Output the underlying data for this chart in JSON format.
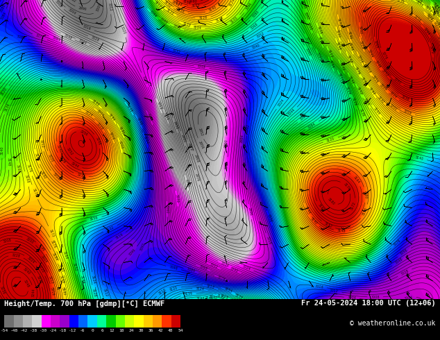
{
  "title_left": "Height/Temp. 700 hPa [gdmp][°C] ECMWF",
  "title_right": "Fr 24-05-2024 18:00 UTC (12+06)",
  "copyright": "© weatheronline.co.uk",
  "colorbar_colors": [
    "#707070",
    "#909090",
    "#b0b0b0",
    "#d0d0d0",
    "#ff00ff",
    "#cc00cc",
    "#9900cc",
    "#0000ff",
    "#0066ff",
    "#00ccff",
    "#00ff99",
    "#00cc00",
    "#66ff00",
    "#ccff00",
    "#ffff00",
    "#ffcc00",
    "#ff9900",
    "#ff3300",
    "#cc0000"
  ],
  "tick_labels": [
    "-54",
    "-48",
    "-42",
    "-38",
    "-30",
    "-24",
    "-18",
    "-12",
    "-6",
    "0",
    "6",
    "12",
    "18",
    "24",
    "30",
    "36",
    "42",
    "48",
    "54"
  ],
  "figsize": [
    6.34,
    4.9
  ],
  "dpi": 100
}
